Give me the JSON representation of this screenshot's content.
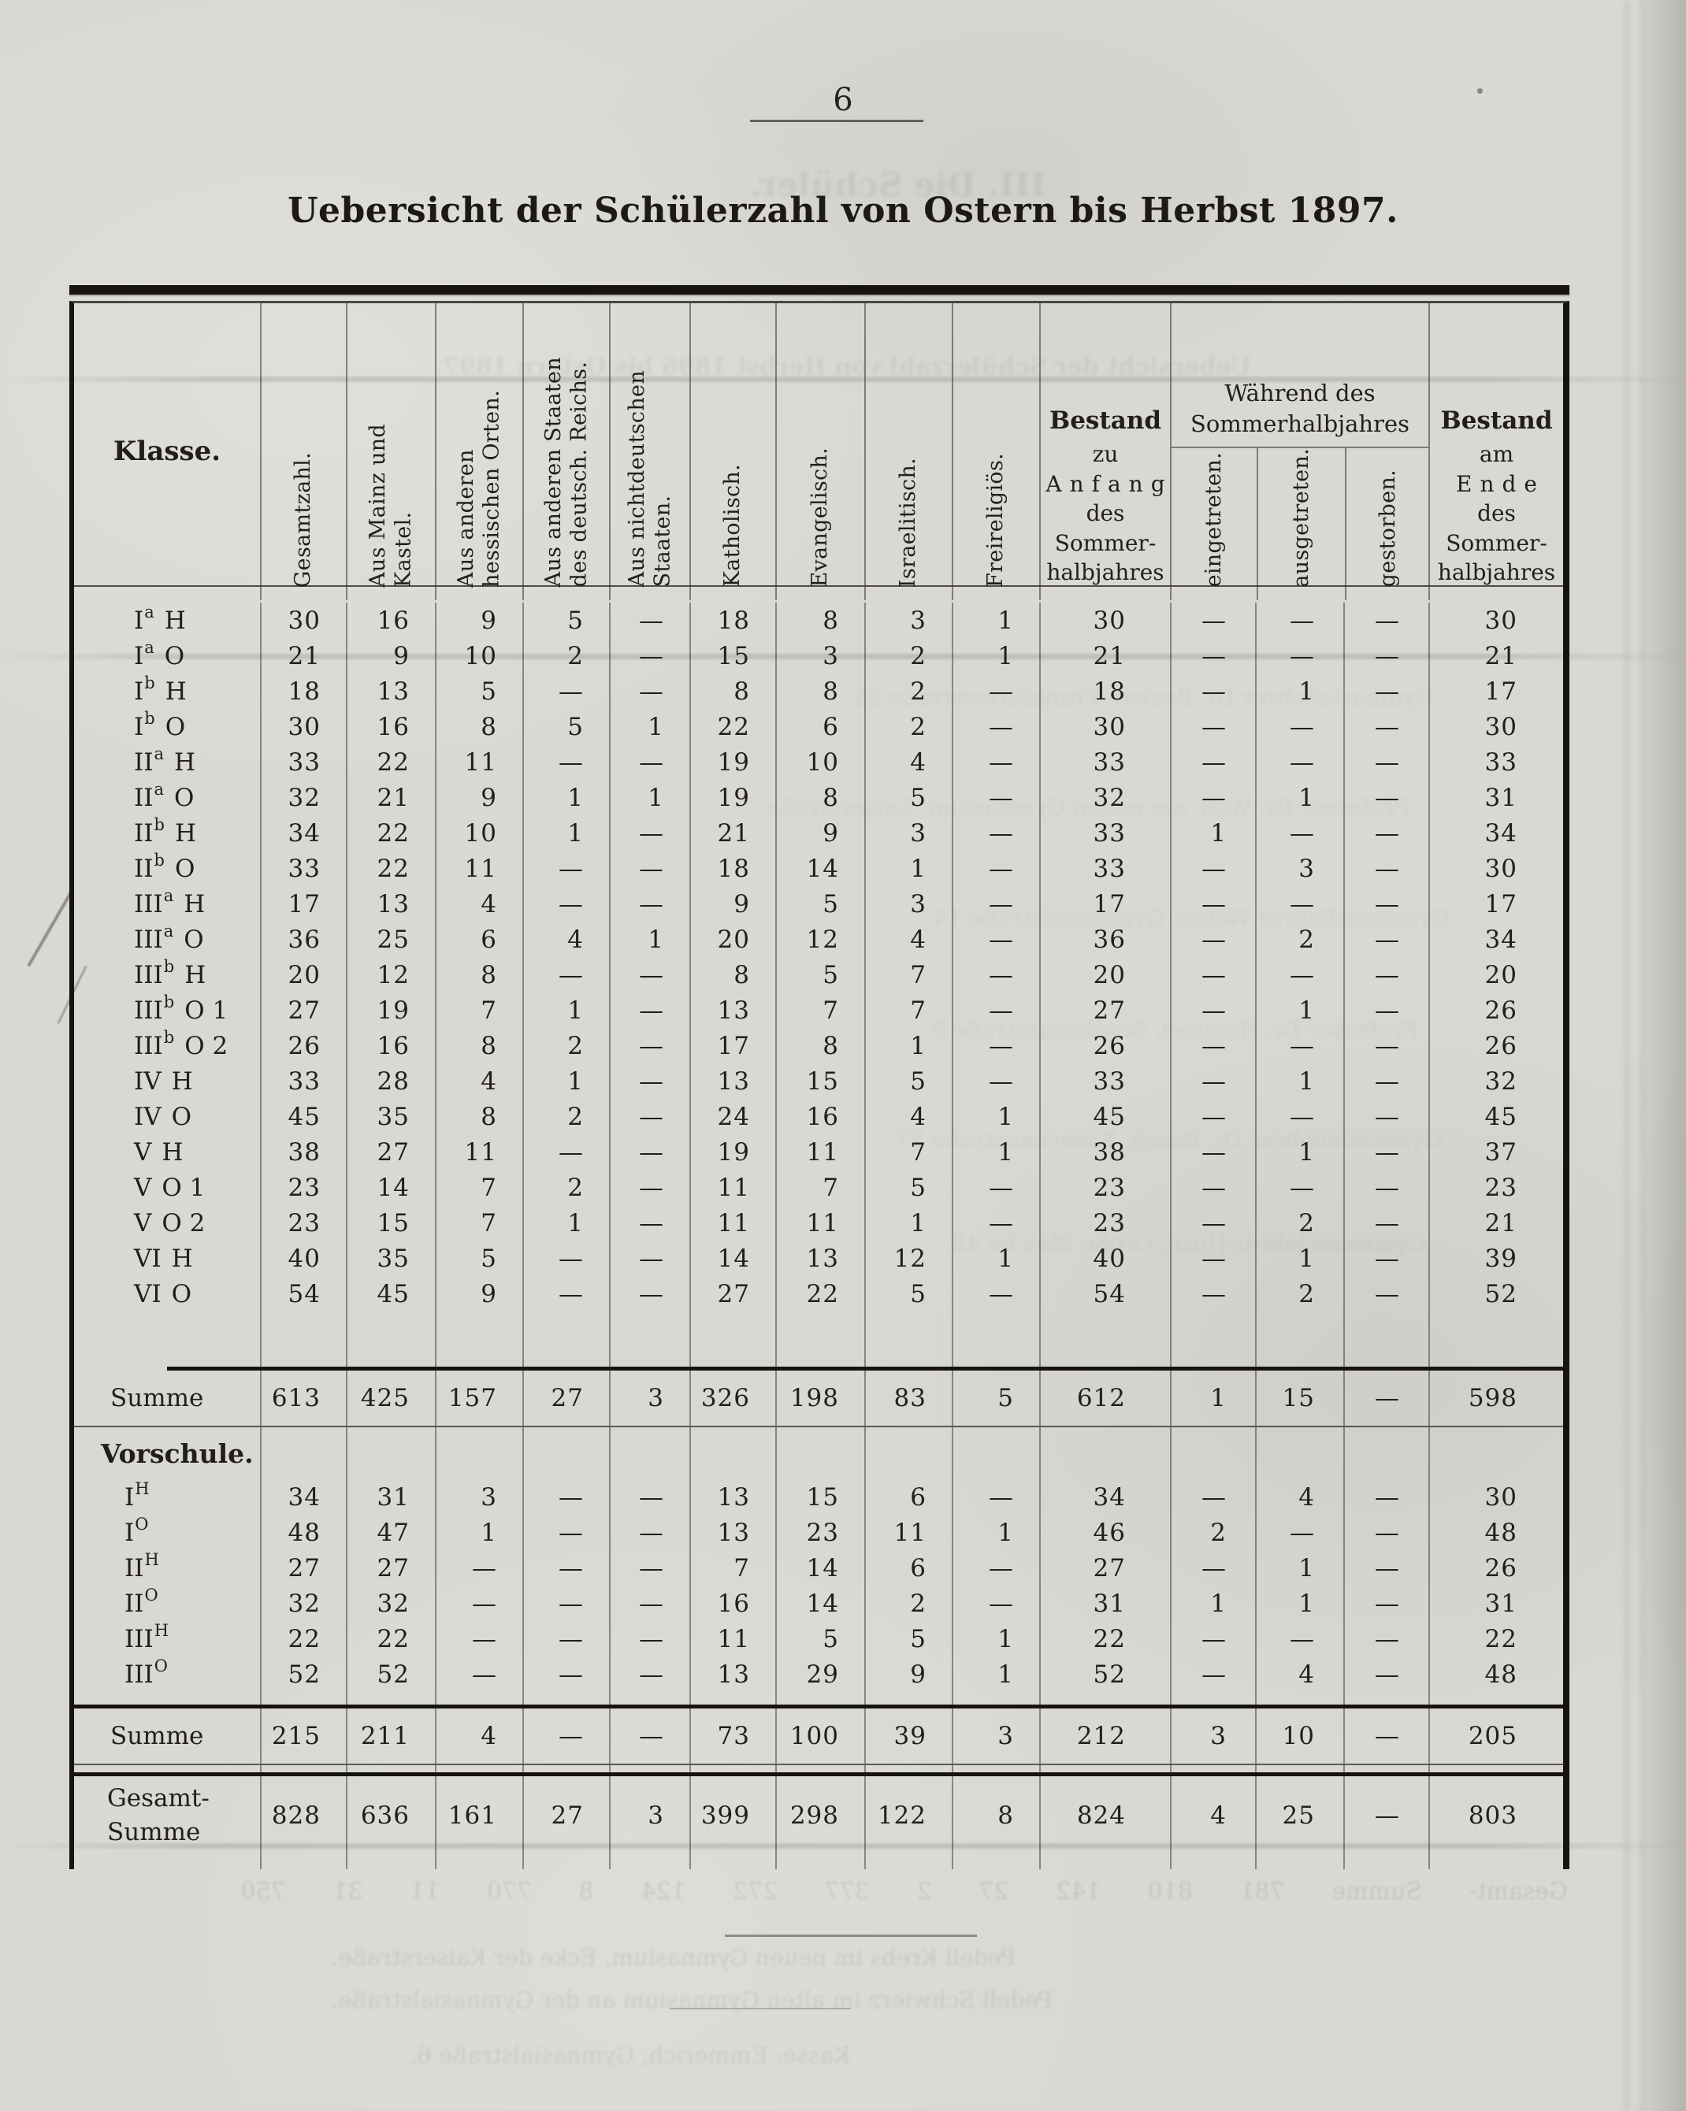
{
  "page": {
    "number": "6",
    "title": "Uebersicht der Schülerzahl von Ostern bis Herbst 1897."
  },
  "table": {
    "corner_label": "Klasse.",
    "rotated_columns": [
      "Gesamtzahl.",
      "Aus Mainz und\nKastel.",
      "Aus anderen\nhessischen Orten.",
      "Aus anderen Staaten\ndes deutsch. Reichs.",
      "Aus nichtdeutschen\nStaaten.",
      "Katholisch.",
      "Evangelisch.",
      "Israelitisch.",
      "Freireligiös."
    ],
    "bestand_anfang_lines": [
      "Bestand",
      "zu",
      "Anfang",
      "des",
      "Sommer-",
      "halbjahres"
    ],
    "waehrend_title": "Während des\nSommerhalbjahres",
    "waehrend_subcolumns": [
      "eingetreten.",
      "ausgetreten.",
      "gestorben."
    ],
    "bestand_ende_lines": [
      "Bestand",
      "am",
      "Ende",
      "des",
      "Sommer-",
      "halbjahres"
    ],
    "main_rows": [
      {
        "label": {
          "base": "I",
          "sup": "a",
          "rest": "H"
        },
        "values": [
          "30",
          "16",
          "9",
          "5",
          "—",
          "18",
          "8",
          "3",
          "1",
          "30",
          "—",
          "—",
          "—",
          "30"
        ]
      },
      {
        "label": {
          "base": "I",
          "sup": "a",
          "rest": "O"
        },
        "values": [
          "21",
          "9",
          "10",
          "2",
          "—",
          "15",
          "3",
          "2",
          "1",
          "21",
          "—",
          "—",
          "—",
          "21"
        ]
      },
      {
        "label": {
          "base": "I",
          "sup": "b",
          "rest": "H"
        },
        "values": [
          "18",
          "13",
          "5",
          "—",
          "—",
          "8",
          "8",
          "2",
          "—",
          "18",
          "—",
          "1",
          "—",
          "17"
        ]
      },
      {
        "label": {
          "base": "I",
          "sup": "b",
          "rest": "O"
        },
        "values": [
          "30",
          "16",
          "8",
          "5",
          "1",
          "22",
          "6",
          "2",
          "—",
          "30",
          "—",
          "—",
          "—",
          "30"
        ]
      },
      {
        "label": {
          "base": "II",
          "sup": "a",
          "rest": "H"
        },
        "values": [
          "33",
          "22",
          "11",
          "—",
          "—",
          "19",
          "10",
          "4",
          "—",
          "33",
          "—",
          "—",
          "—",
          "33"
        ]
      },
      {
        "label": {
          "base": "II",
          "sup": "a",
          "rest": "O"
        },
        "values": [
          "32",
          "21",
          "9",
          "1",
          "1",
          "19",
          "8",
          "5",
          "—",
          "32",
          "—",
          "1",
          "—",
          "31"
        ]
      },
      {
        "label": {
          "base": "II",
          "sup": "b",
          "rest": "H"
        },
        "values": [
          "34",
          "22",
          "10",
          "1",
          "—",
          "21",
          "9",
          "3",
          "—",
          "33",
          "1",
          "—",
          "—",
          "34"
        ]
      },
      {
        "label": {
          "base": "II",
          "sup": "b",
          "rest": "O"
        },
        "values": [
          "33",
          "22",
          "11",
          "—",
          "—",
          "18",
          "14",
          "1",
          "—",
          "33",
          "—",
          "3",
          "—",
          "30"
        ]
      },
      {
        "label": {
          "base": "III",
          "sup": "a",
          "rest": "H"
        },
        "values": [
          "17",
          "13",
          "4",
          "—",
          "—",
          "9",
          "5",
          "3",
          "—",
          "17",
          "—",
          "—",
          "—",
          "17"
        ]
      },
      {
        "label": {
          "base": "III",
          "sup": "a",
          "rest": "O"
        },
        "values": [
          "36",
          "25",
          "6",
          "4",
          "1",
          "20",
          "12",
          "4",
          "—",
          "36",
          "—",
          "2",
          "—",
          "34"
        ]
      },
      {
        "label": {
          "base": "III",
          "sup": "b",
          "rest": "H"
        },
        "values": [
          "20",
          "12",
          "8",
          "—",
          "—",
          "8",
          "5",
          "7",
          "—",
          "20",
          "—",
          "—",
          "—",
          "20"
        ]
      },
      {
        "label": {
          "base": "III",
          "sup": "b",
          "rest": "O 1"
        },
        "values": [
          "27",
          "19",
          "7",
          "1",
          "—",
          "13",
          "7",
          "7",
          "—",
          "27",
          "—",
          "1",
          "—",
          "26"
        ]
      },
      {
        "label": {
          "base": "III",
          "sup": "b",
          "rest": "O 2"
        },
        "values": [
          "26",
          "16",
          "8",
          "2",
          "—",
          "17",
          "8",
          "1",
          "—",
          "26",
          "—",
          "—",
          "—",
          "26"
        ]
      },
      {
        "label": {
          "base": "IV",
          "sup": "",
          "rest": "H"
        },
        "values": [
          "33",
          "28",
          "4",
          "1",
          "—",
          "13",
          "15",
          "5",
          "—",
          "33",
          "—",
          "1",
          "—",
          "32"
        ]
      },
      {
        "label": {
          "base": "IV",
          "sup": "",
          "rest": "O"
        },
        "values": [
          "45",
          "35",
          "8",
          "2",
          "—",
          "24",
          "16",
          "4",
          "1",
          "45",
          "—",
          "—",
          "—",
          "45"
        ]
      },
      {
        "label": {
          "base": "V",
          "sup": "",
          "rest": "H"
        },
        "values": [
          "38",
          "27",
          "11",
          "—",
          "—",
          "19",
          "11",
          "7",
          "1",
          "38",
          "—",
          "1",
          "—",
          "37"
        ]
      },
      {
        "label": {
          "base": "V",
          "sup": "",
          "rest": "O 1"
        },
        "values": [
          "23",
          "14",
          "7",
          "2",
          "—",
          "11",
          "7",
          "5",
          "—",
          "23",
          "—",
          "—",
          "—",
          "23"
        ]
      },
      {
        "label": {
          "base": "V",
          "sup": "",
          "rest": "O 2"
        },
        "values": [
          "23",
          "15",
          "7",
          "1",
          "—",
          "11",
          "11",
          "1",
          "—",
          "23",
          "—",
          "2",
          "—",
          "21"
        ]
      },
      {
        "label": {
          "base": "VI",
          "sup": "",
          "rest": "H"
        },
        "values": [
          "40",
          "35",
          "5",
          "—",
          "—",
          "14",
          "13",
          "12",
          "1",
          "40",
          "—",
          "1",
          "—",
          "39"
        ]
      },
      {
        "label": {
          "base": "VI",
          "sup": "",
          "rest": "O"
        },
        "values": [
          "54",
          "45",
          "9",
          "—",
          "—",
          "27",
          "22",
          "5",
          "—",
          "54",
          "—",
          "2",
          "—",
          "52"
        ]
      }
    ],
    "main_summe": {
      "label": "Summe",
      "values": [
        "613",
        "425",
        "157",
        "27",
        "3",
        "326",
        "198",
        "83",
        "5",
        "612",
        "1",
        "15",
        "—",
        "598"
      ]
    },
    "section_label": "Vorschule.",
    "vorschule_rows": [
      {
        "label": {
          "base": "I",
          "sup": "H",
          "rest": ""
        },
        "values": [
          "34",
          "31",
          "3",
          "—",
          "—",
          "13",
          "15",
          "6",
          "—",
          "34",
          "—",
          "4",
          "—",
          "30"
        ]
      },
      {
        "label": {
          "base": "I",
          "sup": "O",
          "rest": ""
        },
        "values": [
          "48",
          "47",
          "1",
          "—",
          "—",
          "13",
          "23",
          "11",
          "1",
          "46",
          "2",
          "—",
          "—",
          "48"
        ]
      },
      {
        "label": {
          "base": "II",
          "sup": "H",
          "rest": ""
        },
        "values": [
          "27",
          "27",
          "—",
          "—",
          "—",
          "7",
          "14",
          "6",
          "—",
          "27",
          "—",
          "1",
          "—",
          "26"
        ]
      },
      {
        "label": {
          "base": "II",
          "sup": "O",
          "rest": ""
        },
        "values": [
          "32",
          "32",
          "—",
          "—",
          "—",
          "16",
          "14",
          "2",
          "—",
          "31",
          "1",
          "1",
          "—",
          "31"
        ]
      },
      {
        "label": {
          "base": "III",
          "sup": "H",
          "rest": ""
        },
        "values": [
          "22",
          "22",
          "—",
          "—",
          "—",
          "11",
          "5",
          "5",
          "1",
          "22",
          "—",
          "—",
          "—",
          "22"
        ]
      },
      {
        "label": {
          "base": "III",
          "sup": "O",
          "rest": ""
        },
        "values": [
          "52",
          "52",
          "—",
          "—",
          "—",
          "13",
          "29",
          "9",
          "1",
          "52",
          "—",
          "4",
          "—",
          "48"
        ]
      }
    ],
    "vorschule_summe": {
      "label": "Summe",
      "values": [
        "215",
        "211",
        "4",
        "—",
        "—",
        "73",
        "100",
        "39",
        "3",
        "212",
        "3",
        "10",
        "—",
        "205"
      ]
    },
    "gesamt_summe": {
      "label": "Gesamt-\nSumme",
      "values": [
        "828",
        "636",
        "161",
        "27",
        "3",
        "399",
        "298",
        "122",
        "8",
        "824",
        "4",
        "25",
        "—",
        "803"
      ]
    }
  },
  "bleedthrough": {
    "heading": "III. Die Schüler.",
    "header_line": "Uebersicht der Schülerzahl von Herbst 1896 bis Ostern 1897.",
    "body_lines": [
      "Gymnasiallehrer Dr. Becker, Frankfurterstraße 21.",
      "Professor Dr. Wolf, am neuen Gymnasium, Kaiserstraße.",
      "Gymnasiallehrer Weber, Gymnasialstraße 14.",
      "Professor Dr. Hammel, Bonifaziusstraße 9.",
      "Gymnasiallehrer Dr. Busch, Kasernenstraße 27.",
      "Gymnasiallehrer Horn, Große Bleiche 48."
    ],
    "numbers_line": "Gesamt- Summe 781 810 142 27 2 377 272 124 8 770 11 31 750",
    "bottom_lines": [
      "Pedell Krebs im neuen Gymnasium, Ecke der Kaiserstraße.",
      "Pedell Schwierz im alten Gymnasium an der Gymnasialstraße.",
      "Kasse: Emmerich, Gymnasialstraße 6."
    ]
  }
}
